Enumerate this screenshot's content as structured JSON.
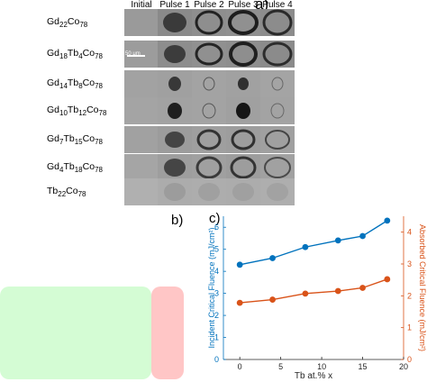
{
  "panel_a": {
    "label": "a)",
    "columns": [
      "Initial",
      "Pulse 1",
      "Pulse 2",
      "Pulse 3",
      "Pulse 4"
    ],
    "rows": [
      {
        "base": "Gd",
        "sub1": "22",
        "mid": "Co",
        "sub2": "78",
        "tail": "",
        "sub3": ""
      },
      {
        "base": "Gd",
        "sub1": "18",
        "mid": "Tb",
        "sub2": "4",
        "tail": "Co",
        "sub3": "78"
      },
      {
        "base": "Gd",
        "sub1": "14",
        "mid": "Tb",
        "sub2": "8",
        "tail": "Co",
        "sub3": "78"
      },
      {
        "base": "Gd",
        "sub1": "10",
        "mid": "Tb",
        "sub2": "12",
        "tail": "Co",
        "sub3": "78"
      },
      {
        "base": "Gd",
        "sub1": "7",
        "mid": "Tb",
        "sub2": "15",
        "tail": "Co",
        "sub3": "78"
      },
      {
        "base": "Gd",
        "sub1": "4",
        "mid": "Tb",
        "sub2": "18",
        "tail": "Co",
        "sub3": "78"
      },
      {
        "base": "Tb",
        "sub1": "22",
        "mid": "Co",
        "sub2": "78",
        "tail": "",
        "sub3": ""
      }
    ],
    "scale_bar": "50 μm"
  },
  "panel_b_label": "b)",
  "panel_c_label": "c)",
  "colors": {
    "blue": "#0072bd",
    "orange": "#d95319",
    "green_block": "#cdfbcd",
    "red_block": "#ffc0c0"
  },
  "chart_data": {
    "type": "line",
    "x": [
      0,
      4,
      8,
      12,
      15,
      18
    ],
    "xlabel": "Tb at.% x",
    "xlim": [
      -2,
      20
    ],
    "xticks": [
      0,
      5,
      10,
      15,
      20
    ],
    "series": [
      {
        "name": "Incident Critical Fluence",
        "axis": "left",
        "color": "#0072bd",
        "values": [
          4.3,
          4.6,
          5.1,
          5.4,
          5.6,
          6.3
        ]
      },
      {
        "name": "Absorbed Critical Fluence",
        "axis": "right",
        "color": "#d95319",
        "values": [
          1.78,
          1.88,
          2.07,
          2.15,
          2.25,
          2.52
        ]
      }
    ],
    "ylabel_left": "Incident Critical Fluence (mJ/cm²)",
    "ylim_left": [
      0,
      6.5
    ],
    "yticks_left": [
      0,
      1,
      2,
      3,
      4,
      5,
      6
    ],
    "ylabel_right": "Absorbed Critical Fluence (mJ/cm²)",
    "ylim_right": [
      0,
      4.5
    ],
    "yticks_right": [
      0,
      1,
      2,
      3,
      4
    ],
    "grid": false
  }
}
